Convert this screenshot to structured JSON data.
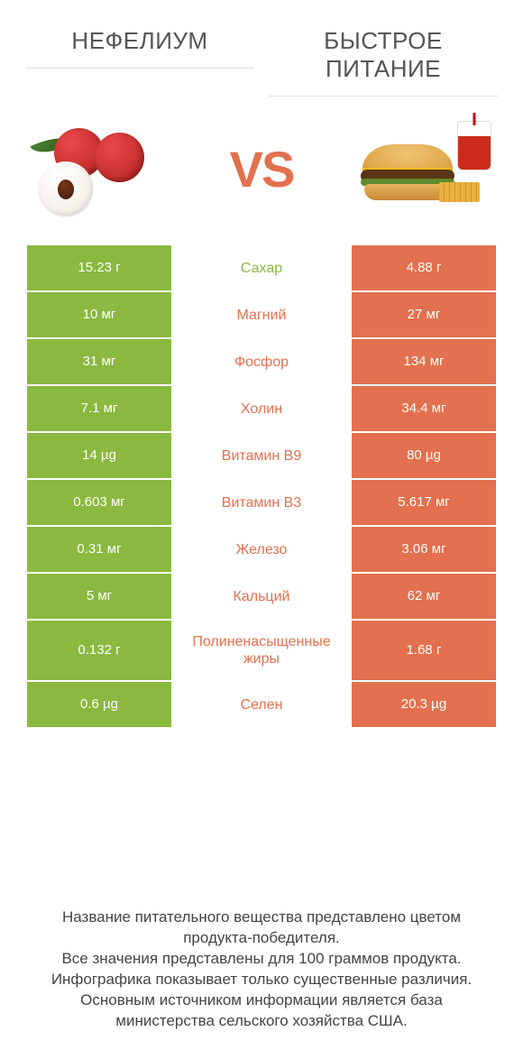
{
  "titles": {
    "left": "НЕФЕЛИУМ",
    "right": "БЫСТРОЕ ПИТАНИЕ"
  },
  "vs_label": "VS",
  "colors": {
    "green": "#8bb83f",
    "orange": "#e3704e",
    "label_green": "#8bb83f",
    "label_orange": "#e3704e",
    "background": "#ffffff",
    "title_text": "#555555",
    "footer_text": "#444444"
  },
  "rows": [
    {
      "left": "15.23 г",
      "label": "Сахар",
      "right": "4.88 г",
      "winner": "left"
    },
    {
      "left": "10 мг",
      "label": "Магний",
      "right": "27 мг",
      "winner": "right"
    },
    {
      "left": "31 мг",
      "label": "Фосфор",
      "right": "134 мг",
      "winner": "right"
    },
    {
      "left": "7.1 мг",
      "label": "Холин",
      "right": "34.4 мг",
      "winner": "right"
    },
    {
      "left": "14 µg",
      "label": "Витамин B9",
      "right": "80 µg",
      "winner": "right"
    },
    {
      "left": "0.603 мг",
      "label": "Витамин B3",
      "right": "5.617 мг",
      "winner": "right"
    },
    {
      "left": "0.31 мг",
      "label": "Железо",
      "right": "3.06 мг",
      "winner": "right"
    },
    {
      "left": "5 мг",
      "label": "Кальций",
      "right": "62 мг",
      "winner": "right"
    },
    {
      "left": "0.132 г",
      "label": "Полиненасыщенные жиры",
      "right": "1.68 г",
      "winner": "right",
      "tall": true
    },
    {
      "left": "0.6 µg",
      "label": "Селен",
      "right": "20.3 µg",
      "winner": "right"
    }
  ],
  "footer_lines": [
    "Название питательного вещества представлено цветом продукта-победителя.",
    "Все значения представлены для 100 граммов продукта.",
    "Инфографика показывает только существенные различия.",
    "Основным источником информации является база министерства сельского хозяйства США."
  ]
}
